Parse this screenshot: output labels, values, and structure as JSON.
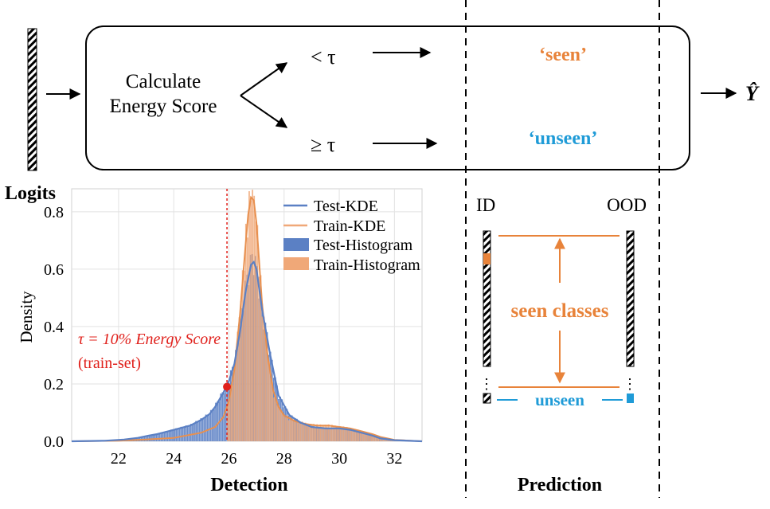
{
  "pipeline": {
    "box_label_line1": "Calculate",
    "box_label_line2": "Energy Score",
    "branch_low": "< τ",
    "branch_high": "≥ τ",
    "result_seen": "‘seen’",
    "result_unseen": "‘unseen’",
    "output_label": "Ŷ",
    "input_label": "Logits"
  },
  "colors": {
    "seen": "#e8833a",
    "unseen": "#1f9bd7",
    "test": "#5b80c4",
    "train": "#f0a878",
    "threshold": "#e0201b"
  },
  "prediction": {
    "id_label": "ID",
    "ood_label": "OOD",
    "seen_classes": "seen classes",
    "unseen": "unseen",
    "dots": "⋮",
    "section_label": "Prediction"
  },
  "chart_data": {
    "type": "area",
    "xlabel": "Detection",
    "ylabel": "Density",
    "xlim": [
      20.3,
      33.0
    ],
    "ylim": [
      0,
      0.88
    ],
    "xticks": [
      "22",
      "24",
      "26",
      "28",
      "30",
      "32"
    ],
    "yticks": [
      "0.0",
      "0.2",
      "0.4",
      "0.6",
      "0.8"
    ],
    "grid": true,
    "legend_position": "top-right",
    "legend": [
      "Test-KDE",
      "Train-KDE",
      "Test-Histogram",
      "Train-Histogram"
    ],
    "threshold_x": 25.93,
    "threshold_point": [
      25.93,
      0.19
    ],
    "annotation_line1": "τ = 10% Energy Score",
    "annotation_line2": "(train-set)",
    "series": [
      {
        "name": "Test-KDE",
        "x": [
          20.3,
          21.5,
          22.2,
          22.7,
          23.1,
          23.4,
          23.8,
          24.2,
          24.6,
          25.0,
          25.3,
          25.5,
          25.8,
          26.0,
          26.2,
          26.4,
          26.6,
          26.8,
          26.9,
          27.0,
          27.2,
          27.5,
          27.8,
          28.2,
          28.6,
          29.0,
          29.5,
          30.0,
          30.4,
          30.8,
          31.2,
          31.5,
          32.0,
          33.0
        ],
        "y": [
          0.0,
          0.002,
          0.006,
          0.012,
          0.02,
          0.025,
          0.035,
          0.045,
          0.055,
          0.075,
          0.095,
          0.12,
          0.17,
          0.21,
          0.27,
          0.38,
          0.52,
          0.615,
          0.625,
          0.6,
          0.46,
          0.3,
          0.16,
          0.09,
          0.065,
          0.05,
          0.045,
          0.045,
          0.04,
          0.03,
          0.02,
          0.01,
          0.004,
          0.0
        ]
      },
      {
        "name": "Train-KDE",
        "x": [
          20.3,
          22.0,
          23.0,
          24.0,
          25.0,
          25.5,
          25.8,
          26.0,
          26.2,
          26.4,
          26.6,
          26.7,
          26.8,
          26.9,
          27.0,
          27.1,
          27.2,
          27.4,
          27.6,
          27.8,
          28.0,
          28.4,
          28.8,
          29.2,
          29.6,
          30.0,
          30.4,
          30.8,
          31.2,
          31.5,
          32.0,
          33.0
        ],
        "y": [
          0.0,
          0.002,
          0.006,
          0.012,
          0.03,
          0.05,
          0.085,
          0.14,
          0.25,
          0.44,
          0.68,
          0.79,
          0.85,
          0.84,
          0.76,
          0.62,
          0.48,
          0.3,
          0.18,
          0.12,
          0.09,
          0.07,
          0.06,
          0.055,
          0.055,
          0.05,
          0.045,
          0.035,
          0.025,
          0.015,
          0.005,
          0.0
        ]
      }
    ]
  }
}
